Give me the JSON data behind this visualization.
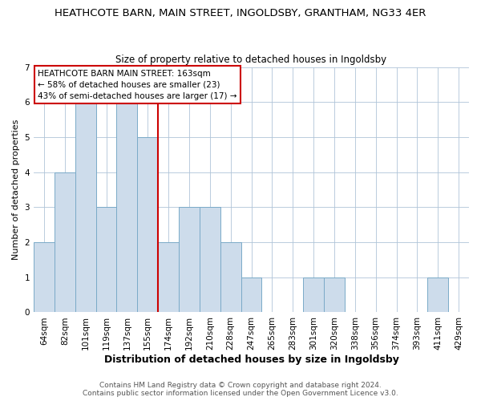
{
  "title": "HEATHCOTE BARN, MAIN STREET, INGOLDSBY, GRANTHAM, NG33 4ER",
  "subtitle": "Size of property relative to detached houses in Ingoldsby",
  "xlabel": "Distribution of detached houses by size in Ingoldsby",
  "ylabel": "Number of detached properties",
  "bin_labels": [
    "64sqm",
    "82sqm",
    "101sqm",
    "119sqm",
    "137sqm",
    "155sqm",
    "174sqm",
    "192sqm",
    "210sqm",
    "228sqm",
    "247sqm",
    "265sqm",
    "283sqm",
    "301sqm",
    "320sqm",
    "338sqm",
    "356sqm",
    "374sqm",
    "393sqm",
    "411sqm",
    "429sqm"
  ],
  "bar_values": [
    2,
    4,
    6,
    3,
    6,
    5,
    2,
    3,
    3,
    2,
    1,
    0,
    0,
    1,
    1,
    0,
    0,
    0,
    0,
    1,
    0
  ],
  "bar_color": "#cddceb",
  "bar_edgecolor": "#7aaac8",
  "vline_x": 6,
  "vline_color": "#cc0000",
  "ylim": [
    0,
    7
  ],
  "yticks": [
    0,
    1,
    2,
    3,
    4,
    5,
    6,
    7
  ],
  "annotation_title": "HEATHCOTE BARN MAIN STREET: 163sqm",
  "annotation_line1": "← 58% of detached houses are smaller (23)",
  "annotation_line2": "43% of semi-detached houses are larger (17) →",
  "annotation_box_facecolor": "#ffffff",
  "annotation_box_edgecolor": "#cc0000",
  "footer1": "Contains HM Land Registry data © Crown copyright and database right 2024.",
  "footer2": "Contains public sector information licensed under the Open Government Licence v3.0.",
  "background_color": "#ffffff",
  "grid_color": "#b0c4d8",
  "title_fontsize": 9.5,
  "subtitle_fontsize": 8.5,
  "title_fontweight": "normal",
  "ylabel_fontsize": 8,
  "xlabel_fontsize": 9,
  "tick_fontsize": 7.5,
  "ann_fontsize": 7.5,
  "footer_fontsize": 6.5
}
